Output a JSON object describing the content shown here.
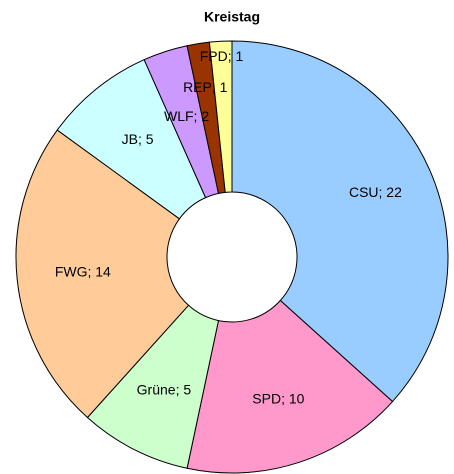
{
  "chart_data": {
    "type": "donut",
    "title": "Kreistag",
    "values": [
      22,
      10,
      5,
      14,
      5,
      2,
      1,
      1
    ],
    "value_labels": [
      "CSU; 22",
      "SPD; 10",
      "Grüne; 5",
      "FWG; 14",
      "JB; 5",
      "WLF; 2",
      "REP; 1",
      "FPD; 1"
    ],
    "colors": [
      "#99ccff",
      "#ff99cc",
      "#ccffcc",
      "#ffcc99",
      "#ccffff",
      "#cc99ff",
      "#993300",
      "#ffff99"
    ]
  }
}
